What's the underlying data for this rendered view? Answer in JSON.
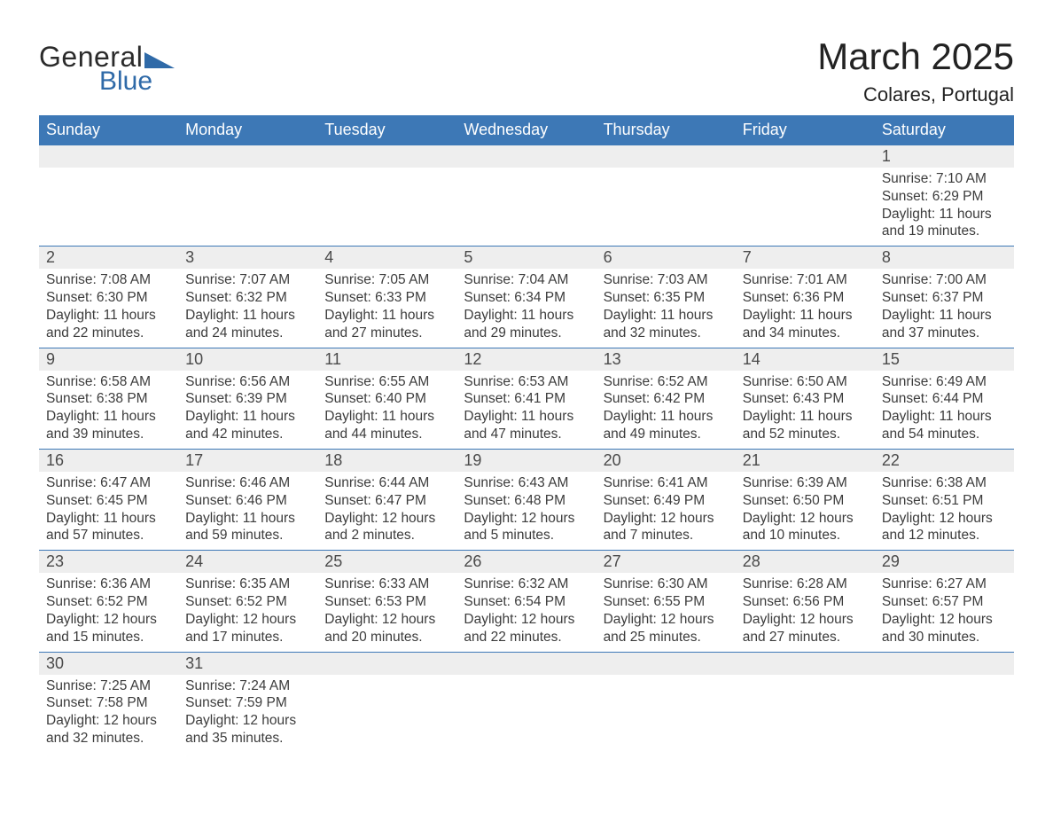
{
  "brand": {
    "text_general": "General",
    "text_blue": "Blue",
    "color_general": "#2b2b2b",
    "color_blue": "#2f6aa8"
  },
  "title": {
    "month": "March 2025",
    "location": "Colares, Portugal"
  },
  "colors": {
    "header_bg": "#3d78b6",
    "header_text": "#ffffff",
    "row_border": "#3d78b6",
    "daynum_bg": "#eeeeee",
    "body_text": "#3c3c3c"
  },
  "weekdays": [
    "Sunday",
    "Monday",
    "Tuesday",
    "Wednesday",
    "Thursday",
    "Friday",
    "Saturday"
  ],
  "weeks": [
    [
      null,
      null,
      null,
      null,
      null,
      null,
      {
        "n": "1",
        "sr": "Sunrise: 7:10 AM",
        "ss": "Sunset: 6:29 PM",
        "d1": "Daylight: 11 hours",
        "d2": "and 19 minutes."
      }
    ],
    [
      {
        "n": "2",
        "sr": "Sunrise: 7:08 AM",
        "ss": "Sunset: 6:30 PM",
        "d1": "Daylight: 11 hours",
        "d2": "and 22 minutes."
      },
      {
        "n": "3",
        "sr": "Sunrise: 7:07 AM",
        "ss": "Sunset: 6:32 PM",
        "d1": "Daylight: 11 hours",
        "d2": "and 24 minutes."
      },
      {
        "n": "4",
        "sr": "Sunrise: 7:05 AM",
        "ss": "Sunset: 6:33 PM",
        "d1": "Daylight: 11 hours",
        "d2": "and 27 minutes."
      },
      {
        "n": "5",
        "sr": "Sunrise: 7:04 AM",
        "ss": "Sunset: 6:34 PM",
        "d1": "Daylight: 11 hours",
        "d2": "and 29 minutes."
      },
      {
        "n": "6",
        "sr": "Sunrise: 7:03 AM",
        "ss": "Sunset: 6:35 PM",
        "d1": "Daylight: 11 hours",
        "d2": "and 32 minutes."
      },
      {
        "n": "7",
        "sr": "Sunrise: 7:01 AM",
        "ss": "Sunset: 6:36 PM",
        "d1": "Daylight: 11 hours",
        "d2": "and 34 minutes."
      },
      {
        "n": "8",
        "sr": "Sunrise: 7:00 AM",
        "ss": "Sunset: 6:37 PM",
        "d1": "Daylight: 11 hours",
        "d2": "and 37 minutes."
      }
    ],
    [
      {
        "n": "9",
        "sr": "Sunrise: 6:58 AM",
        "ss": "Sunset: 6:38 PM",
        "d1": "Daylight: 11 hours",
        "d2": "and 39 minutes."
      },
      {
        "n": "10",
        "sr": "Sunrise: 6:56 AM",
        "ss": "Sunset: 6:39 PM",
        "d1": "Daylight: 11 hours",
        "d2": "and 42 minutes."
      },
      {
        "n": "11",
        "sr": "Sunrise: 6:55 AM",
        "ss": "Sunset: 6:40 PM",
        "d1": "Daylight: 11 hours",
        "d2": "and 44 minutes."
      },
      {
        "n": "12",
        "sr": "Sunrise: 6:53 AM",
        "ss": "Sunset: 6:41 PM",
        "d1": "Daylight: 11 hours",
        "d2": "and 47 minutes."
      },
      {
        "n": "13",
        "sr": "Sunrise: 6:52 AM",
        "ss": "Sunset: 6:42 PM",
        "d1": "Daylight: 11 hours",
        "d2": "and 49 minutes."
      },
      {
        "n": "14",
        "sr": "Sunrise: 6:50 AM",
        "ss": "Sunset: 6:43 PM",
        "d1": "Daylight: 11 hours",
        "d2": "and 52 minutes."
      },
      {
        "n": "15",
        "sr": "Sunrise: 6:49 AM",
        "ss": "Sunset: 6:44 PM",
        "d1": "Daylight: 11 hours",
        "d2": "and 54 minutes."
      }
    ],
    [
      {
        "n": "16",
        "sr": "Sunrise: 6:47 AM",
        "ss": "Sunset: 6:45 PM",
        "d1": "Daylight: 11 hours",
        "d2": "and 57 minutes."
      },
      {
        "n": "17",
        "sr": "Sunrise: 6:46 AM",
        "ss": "Sunset: 6:46 PM",
        "d1": "Daylight: 11 hours",
        "d2": "and 59 minutes."
      },
      {
        "n": "18",
        "sr": "Sunrise: 6:44 AM",
        "ss": "Sunset: 6:47 PM",
        "d1": "Daylight: 12 hours",
        "d2": "and 2 minutes."
      },
      {
        "n": "19",
        "sr": "Sunrise: 6:43 AM",
        "ss": "Sunset: 6:48 PM",
        "d1": "Daylight: 12 hours",
        "d2": "and 5 minutes."
      },
      {
        "n": "20",
        "sr": "Sunrise: 6:41 AM",
        "ss": "Sunset: 6:49 PM",
        "d1": "Daylight: 12 hours",
        "d2": "and 7 minutes."
      },
      {
        "n": "21",
        "sr": "Sunrise: 6:39 AM",
        "ss": "Sunset: 6:50 PM",
        "d1": "Daylight: 12 hours",
        "d2": "and 10 minutes."
      },
      {
        "n": "22",
        "sr": "Sunrise: 6:38 AM",
        "ss": "Sunset: 6:51 PM",
        "d1": "Daylight: 12 hours",
        "d2": "and 12 minutes."
      }
    ],
    [
      {
        "n": "23",
        "sr": "Sunrise: 6:36 AM",
        "ss": "Sunset: 6:52 PM",
        "d1": "Daylight: 12 hours",
        "d2": "and 15 minutes."
      },
      {
        "n": "24",
        "sr": "Sunrise: 6:35 AM",
        "ss": "Sunset: 6:52 PM",
        "d1": "Daylight: 12 hours",
        "d2": "and 17 minutes."
      },
      {
        "n": "25",
        "sr": "Sunrise: 6:33 AM",
        "ss": "Sunset: 6:53 PM",
        "d1": "Daylight: 12 hours",
        "d2": "and 20 minutes."
      },
      {
        "n": "26",
        "sr": "Sunrise: 6:32 AM",
        "ss": "Sunset: 6:54 PM",
        "d1": "Daylight: 12 hours",
        "d2": "and 22 minutes."
      },
      {
        "n": "27",
        "sr": "Sunrise: 6:30 AM",
        "ss": "Sunset: 6:55 PM",
        "d1": "Daylight: 12 hours",
        "d2": "and 25 minutes."
      },
      {
        "n": "28",
        "sr": "Sunrise: 6:28 AM",
        "ss": "Sunset: 6:56 PM",
        "d1": "Daylight: 12 hours",
        "d2": "and 27 minutes."
      },
      {
        "n": "29",
        "sr": "Sunrise: 6:27 AM",
        "ss": "Sunset: 6:57 PM",
        "d1": "Daylight: 12 hours",
        "d2": "and 30 minutes."
      }
    ],
    [
      {
        "n": "30",
        "sr": "Sunrise: 7:25 AM",
        "ss": "Sunset: 7:58 PM",
        "d1": "Daylight: 12 hours",
        "d2": "and 32 minutes."
      },
      {
        "n": "31",
        "sr": "Sunrise: 7:24 AM",
        "ss": "Sunset: 7:59 PM",
        "d1": "Daylight: 12 hours",
        "d2": "and 35 minutes."
      },
      null,
      null,
      null,
      null,
      null
    ]
  ]
}
